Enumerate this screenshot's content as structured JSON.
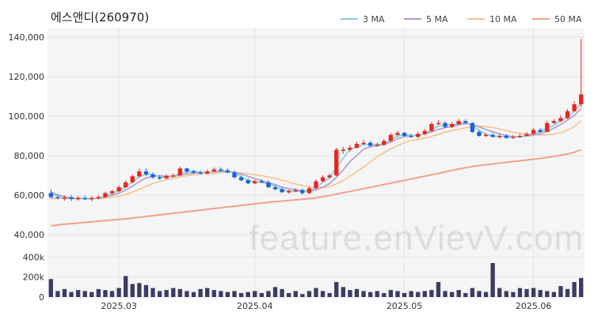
{
  "chart_data": {
    "type": "candlestick",
    "title": "에스앤디(260970)",
    "watermark": "feature.enVievV.com",
    "x_ticks": [
      "2025.03",
      "2025.04",
      "2025.05",
      "2025.06"
    ],
    "y_ticks": [
      "140,000",
      "120,000",
      "100,000",
      "80,000",
      "60,000",
      "40,000"
    ],
    "volume_ticks": [
      "400k",
      "200k",
      "0"
    ],
    "ylim": [
      40000,
      140000
    ],
    "volume_ylim": [
      0,
      600000
    ],
    "colors": {
      "up": "#e8261f",
      "down": "#1a63d8",
      "volume": "#3b3b63",
      "ma3": "#7fd1d8",
      "ma5": "#b498cf",
      "ma10": "#f3c38f",
      "ma50": "#f2a08c"
    },
    "legend": [
      {
        "name": "3 MA",
        "color": "#7fd1d8"
      },
      {
        "name": "5 MA",
        "color": "#b498cf"
      },
      {
        "name": "10 MA",
        "color": "#f3c38f"
      },
      {
        "name": "50 MA",
        "color": "#f2a08c"
      }
    ],
    "dates": [
      "2025-02-17",
      "2025-02-18",
      "2025-02-19",
      "2025-02-20",
      "2025-02-21",
      "2025-02-24",
      "2025-02-25",
      "2025-02-26",
      "2025-02-27",
      "2025-02-28",
      "2025-03-04",
      "2025-03-05",
      "2025-03-06",
      "2025-03-07",
      "2025-03-10",
      "2025-03-11",
      "2025-03-12",
      "2025-03-13",
      "2025-03-14",
      "2025-03-17",
      "2025-03-18",
      "2025-03-19",
      "2025-03-20",
      "2025-03-21",
      "2025-03-24",
      "2025-03-25",
      "2025-03-26",
      "2025-03-27",
      "2025-03-28",
      "2025-03-31",
      "2025-04-01",
      "2025-04-02",
      "2025-04-03",
      "2025-04-04",
      "2025-04-07",
      "2025-04-08",
      "2025-04-09",
      "2025-04-10",
      "2025-04-11",
      "2025-04-14",
      "2025-04-15",
      "2025-04-16",
      "2025-04-17",
      "2025-04-18",
      "2025-04-21",
      "2025-04-22",
      "2025-04-23",
      "2025-04-24",
      "2025-04-25",
      "2025-04-28",
      "2025-04-29",
      "2025-04-30",
      "2025-05-02",
      "2025-05-07",
      "2025-05-08",
      "2025-05-09",
      "2025-05-12",
      "2025-05-13",
      "2025-05-14",
      "2025-05-15",
      "2025-05-16",
      "2025-05-19",
      "2025-05-20",
      "2025-05-21",
      "2025-05-22",
      "2025-05-23",
      "2025-05-26",
      "2025-05-27",
      "2025-05-28",
      "2025-05-29",
      "2025-05-30",
      "2025-06-02",
      "2025-06-04",
      "2025-06-05",
      "2025-06-09",
      "2025-06-10",
      "2025-06-11",
      "2025-06-12",
      "2025-06-13"
    ],
    "open": [
      61000,
      59000,
      58500,
      58800,
      58000,
      58500,
      58200,
      58500,
      59000,
      61000,
      62000,
      64000,
      66500,
      69500,
      72000,
      70500,
      69000,
      68500,
      69800,
      70000,
      73500,
      72000,
      71500,
      71000,
      72000,
      73000,
      72500,
      71500,
      69000,
      67500,
      66000,
      67000,
      66500,
      64000,
      63000,
      61500,
      62000,
      62500,
      61000,
      63500,
      67000,
      69000,
      70000,
      83000,
      83000,
      84000,
      86000,
      86500,
      85000,
      85500,
      87500,
      90500,
      91500,
      90000,
      89500,
      91000,
      92500,
      96000,
      96500,
      94500,
      96000,
      97500,
      96500,
      92000,
      90000,
      90500,
      89500,
      90000,
      89000,
      89500,
      90000,
      91000,
      93000,
      92000,
      96500,
      97500,
      99000,
      102500,
      106000
    ],
    "close": [
      59000,
      58500,
      58800,
      58000,
      58500,
      58200,
      58500,
      59000,
      61000,
      62000,
      64000,
      66500,
      69500,
      72000,
      70500,
      69000,
      68500,
      69800,
      70000,
      73500,
      72000,
      71500,
      71000,
      72000,
      73000,
      72500,
      71500,
      69000,
      67500,
      66000,
      67000,
      66500,
      64000,
      63000,
      61500,
      62000,
      62500,
      61000,
      63500,
      67000,
      69000,
      70000,
      83000,
      83000,
      84000,
      86000,
      86500,
      85000,
      85500,
      87500,
      90500,
      91500,
      90000,
      89500,
      91000,
      92500,
      96000,
      96500,
      94500,
      96000,
      97500,
      96500,
      92000,
      90000,
      90500,
      89500,
      90000,
      89000,
      89500,
      90000,
      91000,
      93000,
      92000,
      96500,
      97500,
      99000,
      102500,
      106000,
      111000
    ],
    "high": [
      63000,
      60000,
      59800,
      60000,
      59500,
      59800,
      59500,
      60000,
      61800,
      62800,
      65000,
      67500,
      70500,
      73500,
      73500,
      71500,
      70000,
      70500,
      71000,
      74500,
      74000,
      72800,
      72500,
      73000,
      74000,
      74000,
      73500,
      72500,
      70000,
      68500,
      68000,
      68000,
      67500,
      65000,
      64000,
      62800,
      63500,
      63500,
      64500,
      68000,
      70000,
      71000,
      84000,
      84500,
      85500,
      87000,
      88000,
      87500,
      86500,
      88500,
      91500,
      92500,
      92000,
      91000,
      92000,
      93500,
      97000,
      98000,
      97500,
      97000,
      98500,
      98500,
      97000,
      93000,
      91500,
      91500,
      91000,
      91000,
      90500,
      91000,
      92000,
      94000,
      94000,
      97500,
      98500,
      100500,
      103500,
      107500,
      139000
    ],
    "low": [
      58200,
      57800,
      57200,
      57000,
      57200,
      57400,
      57000,
      57800,
      58500,
      60000,
      61500,
      63500,
      66000,
      69000,
      69500,
      68200,
      67800,
      68000,
      69000,
      69500,
      71200,
      70800,
      70500,
      70500,
      71500,
      72000,
      71000,
      68500,
      67000,
      65500,
      65500,
      66000,
      63500,
      62500,
      61000,
      60800,
      61500,
      60200,
      60500,
      63000,
      66500,
      68500,
      69500,
      81000,
      82000,
      83500,
      85500,
      84500,
      84500,
      85000,
      87000,
      90000,
      89500,
      89000,
      89000,
      90500,
      92000,
      95500,
      94000,
      94000,
      95500,
      96000,
      91500,
      89500,
      89500,
      89000,
      88500,
      88500,
      88500,
      89000,
      90000,
      90500,
      91500,
      92000,
      96000,
      97000,
      98500,
      102000,
      104500
    ],
    "ma3": [
      60500,
      59800,
      58800,
      58400,
      58400,
      58200,
      58400,
      58600,
      59500,
      60700,
      62300,
      64200,
      66700,
      69300,
      70700,
      70500,
      69300,
      69100,
      69400,
      71100,
      71800,
      72300,
      71500,
      71500,
      72000,
      72500,
      72300,
      71000,
      69300,
      67500,
      66800,
      66500,
      65800,
      64500,
      62800,
      62100,
      62000,
      61800,
      62300,
      63800,
      66500,
      68700,
      74000,
      78700,
      83300,
      84300,
      85500,
      85800,
      85700,
      86000,
      87800,
      89800,
      90700,
      90300,
      90200,
      91000,
      93200,
      95000,
      95700,
      95700,
      96000,
      96700,
      95300,
      92800,
      90800,
      90000,
      89700,
      89500,
      89500,
      89500,
      90200,
      91300,
      92000,
      93800,
      95300,
      97700,
      99500,
      102500,
      106500
    ],
    "ma5": [
      61500,
      60200,
      59200,
      58700,
      58500,
      58300,
      58200,
      58500,
      59200,
      60000,
      61000,
      62600,
      64600,
      66800,
      68700,
      69500,
      69900,
      69500,
      69500,
      70300,
      70800,
      71300,
      71500,
      71600,
      71900,
      72100,
      72000,
      71500,
      70700,
      69500,
      68400,
      67300,
      66200,
      65400,
      64000,
      63300,
      62800,
      62200,
      62100,
      62600,
      64100,
      65900,
      69000,
      72700,
      77000,
      80100,
      83300,
      84500,
      85000,
      85700,
      86900,
      88500,
      89700,
      90100,
      90500,
      90900,
      92000,
      93300,
      94200,
      94700,
      95600,
      96200,
      95900,
      94600,
      93200,
      92100,
      91100,
      90200,
      89600,
      89600,
      89900,
      90400,
      91100,
      92200,
      93900,
      95800,
      98000,
      100300,
      103800
    ],
    "ma10": [
      58500,
      58500,
      58400,
      58300,
      58200,
      58200,
      58200,
      58300,
      58600,
      59000,
      59500,
      60400,
      61600,
      63000,
      64400,
      65900,
      67000,
      67800,
      68500,
      69300,
      69900,
      70400,
      70700,
      70800,
      71100,
      71500,
      71700,
      71600,
      71300,
      70800,
      70400,
      69900,
      69200,
      68500,
      67600,
      66600,
      65700,
      64900,
      64200,
      63900,
      63900,
      64300,
      65700,
      67400,
      69600,
      71900,
      74300,
      76800,
      79400,
      81500,
      83400,
      85100,
      86500,
      87600,
      88200,
      88900,
      89800,
      90900,
      91900,
      92700,
      93400,
      94100,
      94700,
      94900,
      94700,
      94300,
      93600,
      92700,
      91900,
      91300,
      90900,
      90600,
      90500,
      90600,
      90900,
      91600,
      92900,
      94700,
      97600
    ],
    "ma50": [
      44500,
      44900,
      45300,
      45600,
      45900,
      46200,
      46500,
      46800,
      47100,
      47400,
      47700,
      48000,
      48400,
      48800,
      49200,
      49600,
      50000,
      50400,
      50800,
      51200,
      51600,
      52000,
      52400,
      52800,
      53200,
      53600,
      54000,
      54400,
      54800,
      55200,
      55600,
      56000,
      56400,
      56700,
      57000,
      57300,
      57600,
      57900,
      58200,
      58600,
      59200,
      59800,
      60500,
      61200,
      61900,
      62600,
      63300,
      64000,
      64700,
      65400,
      66100,
      66800,
      67500,
      68200,
      68900,
      69600,
      70300,
      71000,
      71800,
      72500,
      73200,
      73900,
      74500,
      75000,
      75400,
      75800,
      76200,
      76600,
      77000,
      77400,
      77800,
      78200,
      78600,
      79100,
      79600,
      80200,
      80900,
      81700,
      83000
    ],
    "volume": [
      180000,
      60000,
      80000,
      50000,
      70000,
      60000,
      50000,
      80000,
      70000,
      60000,
      90000,
      210000,
      130000,
      140000,
      120000,
      90000,
      60000,
      70000,
      90000,
      80000,
      60000,
      50000,
      80000,
      90000,
      70000,
      60000,
      50000,
      60000,
      40000,
      50000,
      60000,
      40000,
      60000,
      100000,
      80000,
      40000,
      60000,
      30000,
      60000,
      90000,
      60000,
      40000,
      150000,
      100000,
      70000,
      80000,
      60000,
      50000,
      60000,
      40000,
      70000,
      60000,
      40000,
      60000,
      50000,
      60000,
      70000,
      150000,
      60000,
      50000,
      70000,
      40000,
      90000,
      60000,
      50000,
      340000,
      90000,
      60000,
      50000,
      90000,
      80000,
      90000,
      70000,
      60000,
      50000,
      110000,
      80000,
      150000,
      190000
    ]
  }
}
